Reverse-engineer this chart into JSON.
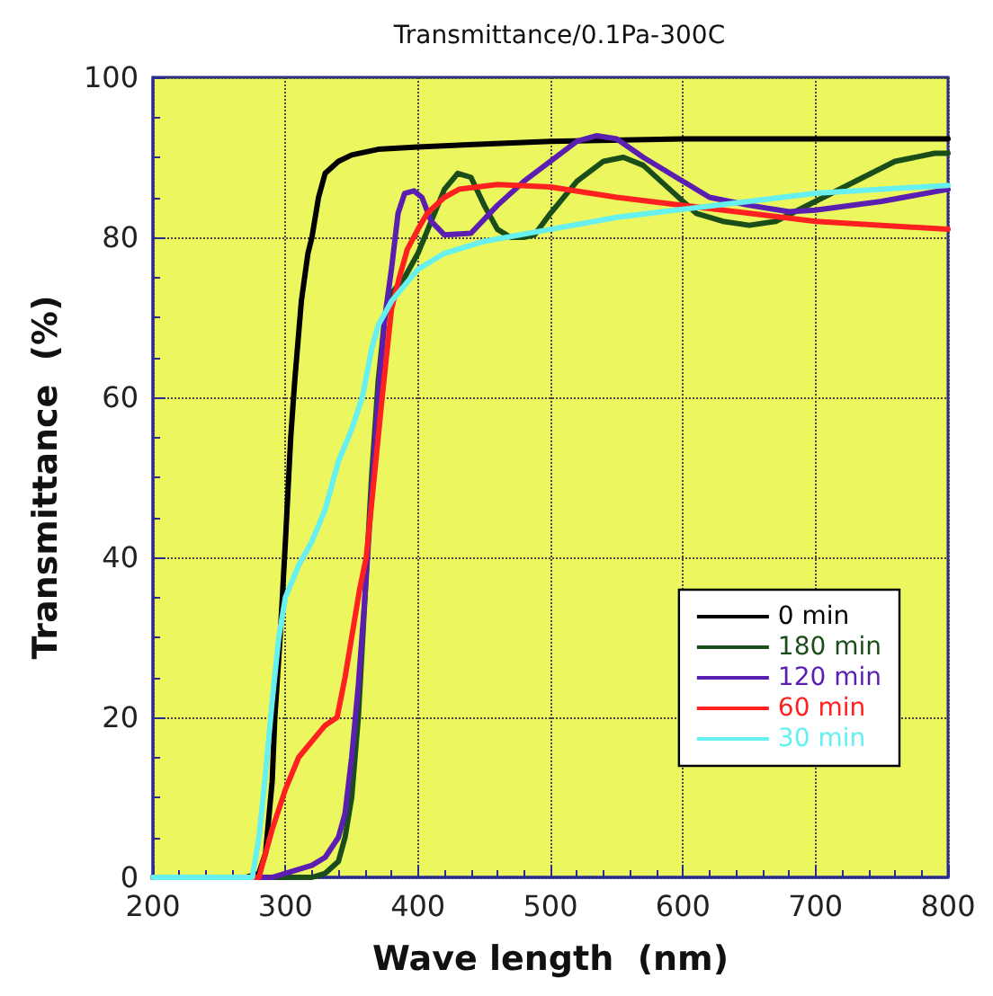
{
  "chart_data": {
    "type": "line",
    "title": "Transmittance/0.1Pa-300C",
    "xlabel": "Wave length  (nm)",
    "ylabel": "Transmittance  (%)",
    "xlim": [
      200,
      800
    ],
    "xticks": [
      200,
      300,
      400,
      500,
      600,
      700,
      800
    ],
    "ylim": [
      0,
      100
    ],
    "yticks": [
      0,
      20,
      40,
      60,
      80,
      100
    ],
    "grid": true,
    "legend": "bottom right",
    "marker": "none",
    "line_style": "solid",
    "series": [
      {
        "name": "0 min",
        "color": "#000000",
        "x": [
          200,
          270,
          280,
          285,
          290,
          292,
          296,
          300,
          304,
          307,
          312,
          317,
          320,
          325,
          330,
          340,
          350,
          370,
          400,
          500,
          600,
          800
        ],
        "values": [
          0,
          0,
          0.5,
          3,
          12,
          20,
          30,
          42,
          55,
          62,
          72,
          78,
          80,
          85,
          88,
          89.5,
          90.3,
          91,
          91.3,
          92,
          92.3,
          92.3
        ]
      },
      {
        "name": "180 min",
        "color": "#1a4d1a",
        "x": [
          200,
          270,
          320,
          330,
          340,
          345,
          350,
          355,
          360,
          365,
          370,
          375,
          380,
          390,
          400,
          410,
          420,
          430,
          440,
          450,
          460,
          470,
          480,
          488,
          500,
          520,
          540,
          555,
          570,
          590,
          610,
          630,
          650,
          670,
          700,
          730,
          760,
          790,
          800
        ],
        "values": [
          0,
          0,
          0,
          0.5,
          2,
          5,
          10,
          20,
          35,
          50,
          62,
          70,
          73,
          75,
          78,
          82,
          86,
          88,
          87.5,
          84,
          81,
          80,
          80,
          80.3,
          83,
          87,
          89.5,
          90,
          89,
          86,
          83,
          82,
          81.5,
          82,
          84.5,
          87,
          89.5,
          90.5,
          90.5
        ]
      },
      {
        "name": "120 min",
        "color": "#5a1fb0",
        "x": [
          200,
          270,
          290,
          300,
          320,
          330,
          340,
          345,
          350,
          355,
          360,
          365,
          370,
          375,
          380,
          385,
          390,
          397,
          403,
          410,
          420,
          440,
          460,
          480,
          500,
          520,
          535,
          550,
          570,
          600,
          620,
          650,
          680,
          700,
          750,
          800
        ],
        "values": [
          0,
          0,
          0,
          0.5,
          1.5,
          2.5,
          5,
          8,
          15,
          24,
          35,
          48,
          60,
          70,
          76,
          83,
          85.5,
          85.8,
          85,
          82,
          80.3,
          80.5,
          84,
          87,
          89.5,
          92,
          92.7,
          92.3,
          90,
          87,
          85,
          84,
          83.2,
          83.4,
          84.5,
          86
        ]
      },
      {
        "name": "60 min",
        "color": "#ff2020",
        "x": [
          200,
          280,
          285,
          290,
          300,
          310,
          320,
          330,
          339,
          345,
          351,
          356,
          361,
          367,
          373,
          380,
          386,
          392,
          400,
          407,
          420,
          431,
          460,
          500,
          550,
          600,
          650,
          700,
          750,
          800
        ],
        "values": [
          0,
          0,
          3,
          6,
          11,
          15,
          17,
          19,
          20,
          25,
          31,
          36,
          40,
          50,
          60,
          71,
          75,
          78.5,
          81,
          83,
          85,
          86,
          86.6,
          86.3,
          85,
          84,
          83,
          82,
          81.5,
          81
        ]
      },
      {
        "name": "30 min",
        "color": "#66f0f0",
        "x": [
          200,
          275,
          280,
          285,
          290,
          295,
          300,
          310,
          320,
          330,
          340,
          350,
          358,
          365,
          370,
          380,
          400,
          420,
          450,
          500,
          550,
          600,
          650,
          700,
          750,
          800
        ],
        "values": [
          0,
          0,
          5,
          13,
          22,
          30,
          35,
          39,
          42,
          46,
          52,
          56,
          60,
          66,
          69,
          72,
          76,
          78,
          79.5,
          81,
          82.5,
          83.5,
          84.5,
          85.5,
          86,
          86.5
        ]
      }
    ]
  }
}
